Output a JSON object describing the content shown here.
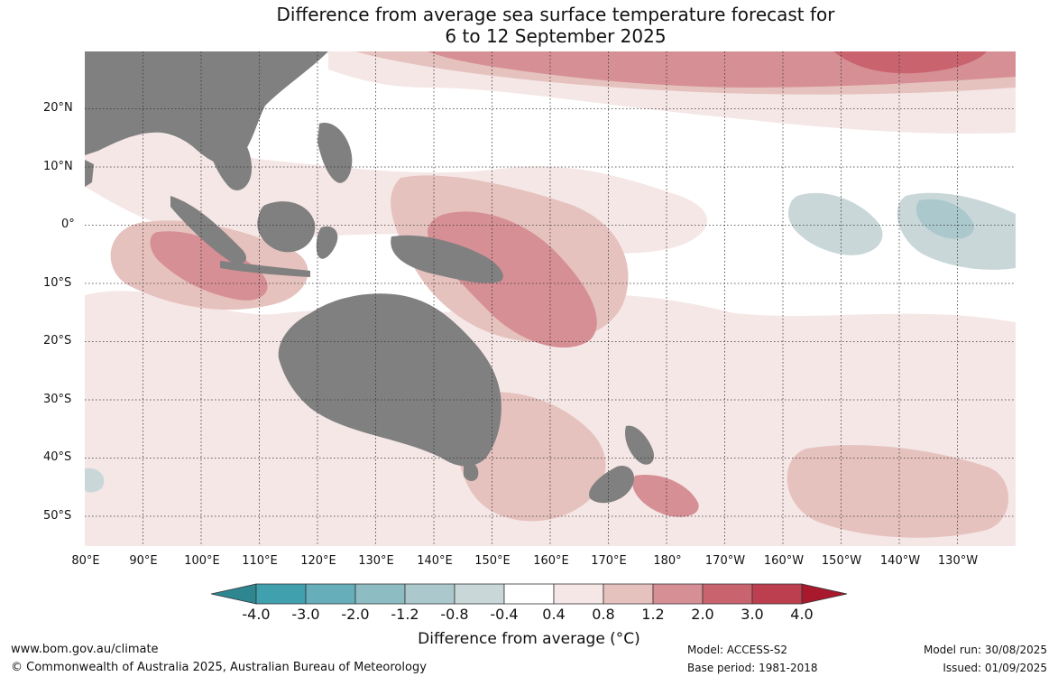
{
  "title": {
    "line1": "Difference from average sea surface temperature forecast for",
    "line2": "6 to 12 September 2025"
  },
  "map": {
    "lat_labels": [
      "20°N",
      "10°N",
      "0°",
      "10°S",
      "20°S",
      "30°S",
      "40°S",
      "50°S"
    ],
    "lon_labels": [
      "80°E",
      "90°E",
      "100°E",
      "110°E",
      "120°E",
      "130°E",
      "140°E",
      "150°E",
      "160°E",
      "170°E",
      "180°",
      "170°W",
      "160°W",
      "150°W",
      "140°W",
      "130°W"
    ],
    "land_color": "#808080",
    "ocean_base_color": "#ffffff"
  },
  "legend": {
    "ticks": [
      "-4.0",
      "-3.0",
      "-2.0",
      "-1.2",
      "-0.8",
      "-0.4",
      "0.4",
      "0.8",
      "1.2",
      "2.0",
      "3.0",
      "4.0"
    ],
    "colors": [
      "#2e8690",
      "#41a0ae",
      "#66aeba",
      "#8dbcc3",
      "#abc8cc",
      "#c9d7d9",
      "#ffffff",
      "#f5e7e6",
      "#e6c2bf",
      "#d68f95",
      "#c9646f",
      "#bc3f4f",
      "#a8192e"
    ],
    "title": "Difference from average (°C)"
  },
  "footer": {
    "website": "www.bom.gov.au/climate",
    "copyright": "© Commonwealth of Australia 2025, Australian Bureau of Meteorology",
    "model": "Model: ACCESS-S2",
    "base_period": "Base period: 1981-2018",
    "model_run": "Model run: 30/08/2025",
    "issued": "Issued: 01/09/2025"
  }
}
